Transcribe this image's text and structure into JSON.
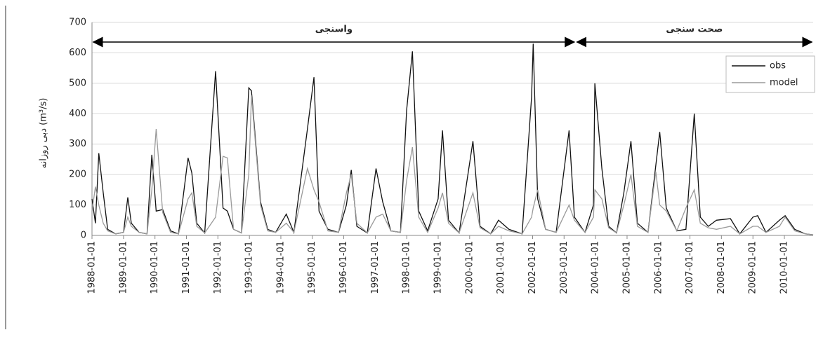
{
  "chart_data": {
    "type": "line",
    "y_label": "دبی روزانه (m³/s)",
    "x": [
      "1988-01-01",
      "1988-02-10",
      "1988-03-20",
      "1988-05-10",
      "1988-07-01",
      "1988-10-01",
      "1989-01-01",
      "1989-02-20",
      "1989-04-01",
      "1989-07-01",
      "1989-10-01",
      "1989-11-25",
      "1990-01-15",
      "1990-04-01",
      "1990-07-01",
      "1990-10-01",
      "1991-01-20",
      "1991-03-05",
      "1991-05-01",
      "1991-08-01",
      "1991-12-05",
      "1992-03-01",
      "1992-04-20",
      "1992-07-01",
      "1992-10-01",
      "1992-12-25",
      "1993-01-25",
      "1993-05-10",
      "1993-08-01",
      "1993-11-01",
      "1994-03-05",
      "1994-06-01",
      "1994-11-05",
      "1995-01-20",
      "1995-03-20",
      "1995-07-01",
      "1995-11-01",
      "1996-02-01",
      "1996-03-28",
      "1996-06-01",
      "1996-10-01",
      "1997-01-10",
      "1997-03-28",
      "1997-07-01",
      "1997-10-20",
      "1997-12-30",
      "1998-03-08",
      "1998-05-20",
      "1998-09-01",
      "1998-12-31",
      "1999-02-20",
      "1999-05-01",
      "1999-09-01",
      "2000-02-08",
      "2000-05-01",
      "2000-09-01",
      "2000-12-01",
      "2001-04-01",
      "2001-09-01",
      "2001-12-20",
      "2002-01-08",
      "2002-03-01",
      "2002-06-01",
      "2002-10-01",
      "2003-02-28",
      "2003-05-01",
      "2003-09-01",
      "2003-12-08",
      "2003-12-24",
      "2004-03-15",
      "2004-06-01",
      "2004-09-01",
      "2004-11-25",
      "2005-02-15",
      "2005-05-01",
      "2005-09-01",
      "2005-12-01",
      "2006-01-15",
      "2006-04-01",
      "2006-08-01",
      "2006-11-15",
      "2007-02-20",
      "2007-05-01",
      "2007-08-01",
      "2007-11-05",
      "2008-04-15",
      "2008-08-01",
      "2009-01-01",
      "2009-02-25",
      "2009-06-01",
      "2009-11-05",
      "2010-01-10",
      "2010-05-01",
      "2010-09-01",
      "2010-12-01"
    ],
    "series": [
      {
        "name": "obs",
        "color": "#111111",
        "values": [
          120,
          40,
          270,
          140,
          20,
          5,
          10,
          125,
          40,
          10,
          5,
          265,
          80,
          85,
          15,
          5,
          255,
          205,
          40,
          8,
          540,
          90,
          80,
          20,
          8,
          485,
          475,
          110,
          20,
          10,
          70,
          10,
          350,
          520,
          80,
          20,
          10,
          100,
          215,
          30,
          8,
          220,
          110,
          15,
          10,
          410,
          605,
          80,
          15,
          120,
          345,
          50,
          8,
          310,
          30,
          5,
          50,
          20,
          5,
          455,
          630,
          120,
          20,
          10,
          345,
          60,
          10,
          100,
          500,
          220,
          30,
          8,
          140,
          310,
          40,
          10,
          230,
          340,
          90,
          15,
          20,
          400,
          60,
          30,
          50,
          55,
          5,
          60,
          65,
          10,
          50,
          65,
          20,
          5,
          2
        ]
      },
      {
        "name": "model",
        "color": "#9a9a9a",
        "values": [
          80,
          160,
          100,
          40,
          15,
          5,
          10,
          60,
          30,
          10,
          5,
          150,
          350,
          75,
          10,
          5,
          120,
          140,
          30,
          8,
          60,
          260,
          255,
          20,
          8,
          200,
          460,
          100,
          15,
          10,
          40,
          10,
          220,
          150,
          110,
          15,
          10,
          140,
          200,
          40,
          8,
          60,
          70,
          15,
          10,
          180,
          290,
          60,
          10,
          90,
          140,
          40,
          8,
          140,
          25,
          5,
          30,
          15,
          5,
          60,
          90,
          150,
          20,
          10,
          100,
          50,
          10,
          60,
          150,
          120,
          25,
          8,
          100,
          200,
          30,
          10,
          210,
          100,
          80,
          15,
          90,
          150,
          40,
          25,
          20,
          30,
          5,
          30,
          30,
          10,
          30,
          60,
          15,
          5,
          2
        ]
      }
    ],
    "xlim": [
      "1988-01-01",
      "2010-12-01"
    ],
    "xticks": [
      "1988-01-01",
      "1989-01-01",
      "1990-01-01",
      "1991-01-01",
      "1992-01-01",
      "1993-01-01",
      "1994-01-01",
      "1995-01-01",
      "1996-01-01",
      "1997-01-01",
      "1998-01-01",
      "1999-01-01",
      "2000-01-01",
      "2001-01-01",
      "2002-01-01",
      "2003-01-01",
      "2004-01-01",
      "2005-01-01",
      "2006-01-01",
      "2007-01-01",
      "2008-01-01",
      "2009-01-01",
      "2010-01-01"
    ],
    "ylim": [
      0,
      700
    ],
    "yticks": [
      0,
      100,
      200,
      300,
      400,
      500,
      600,
      700
    ],
    "grid": true,
    "legend": "top-right",
    "annotations": [
      {
        "text": "واسنجی",
        "x": [
          "1988-01-01",
          "2003-05-15"
        ]
      },
      {
        "text": "صحت سنجی",
        "x": [
          "2003-05-15",
          "2010-12-01"
        ]
      }
    ]
  }
}
